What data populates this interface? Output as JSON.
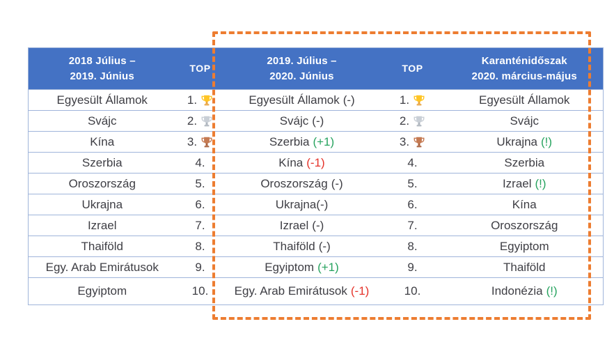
{
  "table": {
    "headers": [
      {
        "line1": "2018 Július –",
        "line2": "2019. Június"
      },
      {
        "label": "TOP"
      },
      {
        "line1": "2019. Július –",
        "line2": "2020. Június"
      },
      {
        "label": "TOP"
      },
      {
        "line1": "Karanténidőszak",
        "line2": "2020. március-május"
      }
    ],
    "rows": [
      {
        "period1": "Egyesült Államok",
        "rank1": "1.",
        "trophy1": "gold",
        "period2": "Egyesült Államok",
        "change2": "(-)",
        "change2_color": "dark",
        "rank2": "1.",
        "trophy2": "gold",
        "period3": "Egyesült Államok",
        "mark3": "",
        "mark3_color": "green"
      },
      {
        "period1": "Svájc",
        "rank1": "2.",
        "trophy1": "silver",
        "period2": "Svájc",
        "change2": "(-)",
        "change2_color": "dark",
        "rank2": "2.",
        "trophy2": "silver",
        "period3": "Svájc",
        "mark3": "",
        "mark3_color": "green"
      },
      {
        "period1": "Kína",
        "rank1": "3.",
        "trophy1": "bronze",
        "period2": "Szerbia",
        "change2": "(+1)",
        "change2_color": "green",
        "rank2": "3.",
        "trophy2": "bronze",
        "period3": "Ukrajna",
        "mark3": "(!)",
        "mark3_color": "green"
      },
      {
        "period1": "Szerbia",
        "rank1": "4.",
        "trophy1": "",
        "period2": "Kína",
        "change2": "(-1)",
        "change2_color": "red",
        "rank2": "4.",
        "trophy2": "",
        "period3": "Szerbia",
        "mark3": "",
        "mark3_color": "green"
      },
      {
        "period1": "Oroszország",
        "rank1": "5.",
        "trophy1": "",
        "period2": "Oroszország",
        "change2": "(-)",
        "change2_color": "dark",
        "rank2": "5.",
        "trophy2": "",
        "period3": "Izrael",
        "mark3": "(!)",
        "mark3_color": "green"
      },
      {
        "period1": "Ukrajna",
        "rank1": "6.",
        "trophy1": "",
        "period2": "Ukrajna",
        "change2": "(-)",
        "change2_color": "dark",
        "change2_nospace": true,
        "rank2": "6.",
        "trophy2": "",
        "period3": "Kína",
        "mark3": "",
        "mark3_color": "green"
      },
      {
        "period1": "Izrael",
        "rank1": "7.",
        "trophy1": "",
        "period2": "Izrael",
        "change2": "(-)",
        "change2_color": "dark",
        "rank2": "7.",
        "trophy2": "",
        "period3": "Oroszország",
        "mark3": "",
        "mark3_color": "green"
      },
      {
        "period1": "Thaiföld",
        "rank1": "8.",
        "trophy1": "",
        "period2": "Thaiföld",
        "change2": "(-)",
        "change2_color": "dark",
        "rank2": "8.",
        "trophy2": "",
        "period3": "Egyiptom",
        "mark3": "",
        "mark3_color": "green"
      },
      {
        "period1": "Egy. Arab Emirátusok",
        "rank1": "9.",
        "trophy1": "",
        "period2": "Egyiptom",
        "change2": "(+1)",
        "change2_color": "green",
        "rank2": "9.",
        "trophy2": "",
        "period3": "Thaiföld",
        "mark3": "",
        "mark3_color": "green"
      },
      {
        "period1": "Egyiptom",
        "rank1": "10.",
        "trophy1": "",
        "period2": "Egy. Arab Emirátusok",
        "change2": "(-1)",
        "change2_color": "red",
        "rank2": "10.",
        "trophy2": "",
        "period3": "Indonézia",
        "mark3": "(!)",
        "mark3_color": "green",
        "tall": true
      }
    ]
  },
  "highlight_box": {
    "meaning": "quarantine-period-columns"
  },
  "colors": {
    "header_bg": "#4472C4",
    "header_text": "#FFFFFF",
    "border": "#9FB4DA",
    "text": "#3E3E44",
    "green": "#27A35F",
    "red": "#E5332A",
    "orange": "#ED7D31",
    "trophy": {
      "gold": {
        "main": "#FFC525",
        "dark": "#E8A33D"
      },
      "silver": {
        "main": "#C9CFD6",
        "dark": "#ADB4BD"
      },
      "bronze": {
        "main": "#C57A52",
        "dark": "#A9603C"
      }
    }
  }
}
